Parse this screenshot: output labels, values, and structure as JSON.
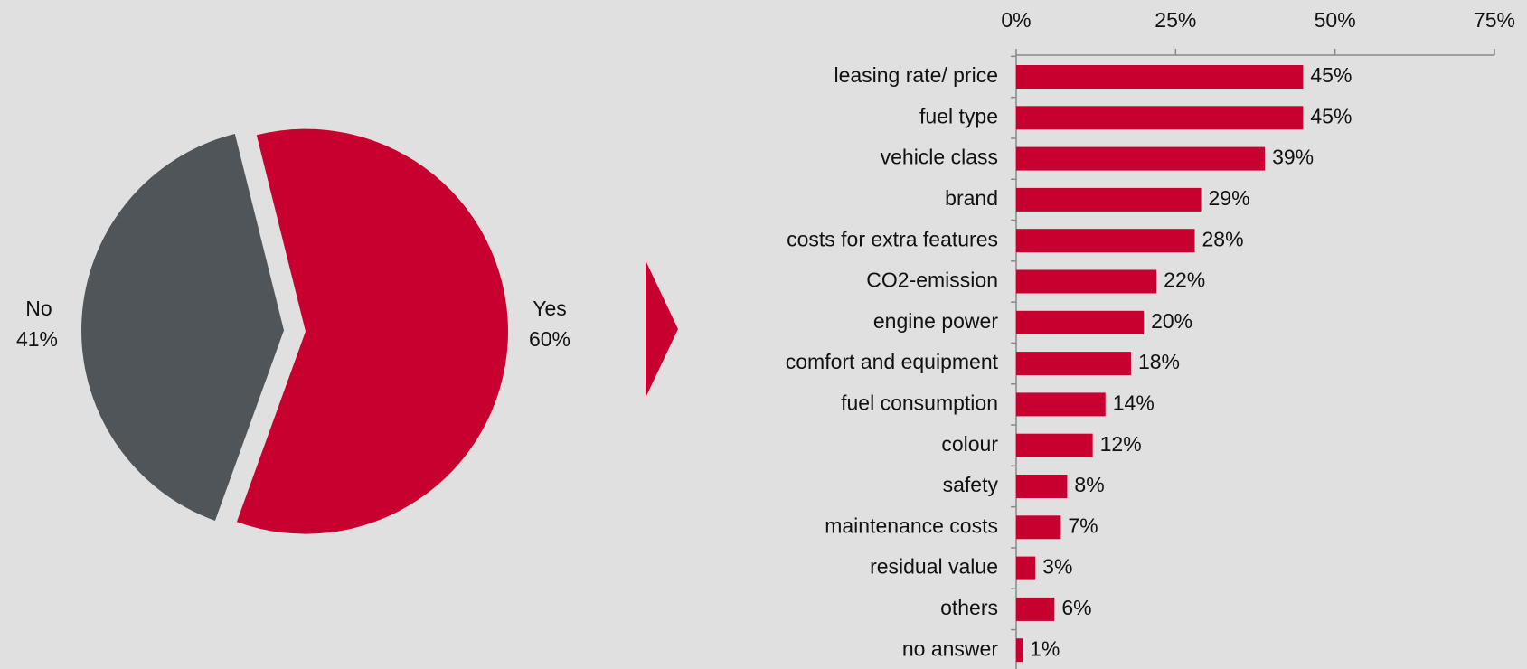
{
  "chart_data": [
    {
      "type": "pie",
      "categories": [
        "Yes",
        "No"
      ],
      "values": [
        60,
        41
      ],
      "value_labels": [
        "60%",
        "41%"
      ],
      "colors": [
        "#c8002f",
        "#505559"
      ]
    },
    {
      "type": "bar",
      "orientation": "horizontal",
      "categories": [
        "leasing rate/ price",
        "fuel type",
        "vehicle class",
        "brand",
        "costs for extra features",
        "CO2-emission",
        "engine power",
        "comfort and equipment",
        "fuel consumption",
        "colour",
        "safety",
        "maintenance costs",
        "residual value",
        "others",
        "no answer"
      ],
      "values": [
        45,
        45,
        39,
        29,
        28,
        22,
        20,
        18,
        14,
        12,
        8,
        7,
        3,
        6,
        1
      ],
      "value_labels": [
        "45%",
        "45%",
        "39%",
        "29%",
        "28%",
        "22%",
        "20%",
        "18%",
        "14%",
        "12%",
        "8%",
        "7%",
        "3%",
        "6%",
        "1%"
      ],
      "color": "#c8002f",
      "xlim": [
        0,
        75
      ],
      "xticks": [
        {
          "value": 0,
          "label": "0%"
        },
        {
          "value": 25,
          "label": "25%"
        },
        {
          "value": 50,
          "label": "50%"
        },
        {
          "value": 75,
          "label": "75%"
        }
      ]
    }
  ]
}
